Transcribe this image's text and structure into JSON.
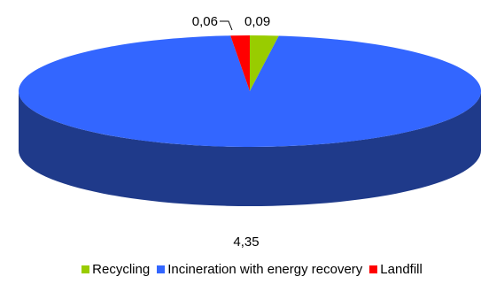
{
  "chart_data": {
    "type": "pie",
    "three_d": true,
    "title": "",
    "categories": [
      "Recycling",
      "Incineration with energy recovery",
      "Landfill"
    ],
    "values": [
      0.09,
      4.35,
      0.06
    ],
    "value_labels": [
      "0,09",
      "4,35",
      "0,06"
    ],
    "colors": [
      "#99cc00",
      "#3366ff",
      "#ff0000"
    ],
    "side_colors": [
      "#5a7a00",
      "#1f3a8a",
      "#8a0000"
    ],
    "legend_position": "bottom"
  }
}
